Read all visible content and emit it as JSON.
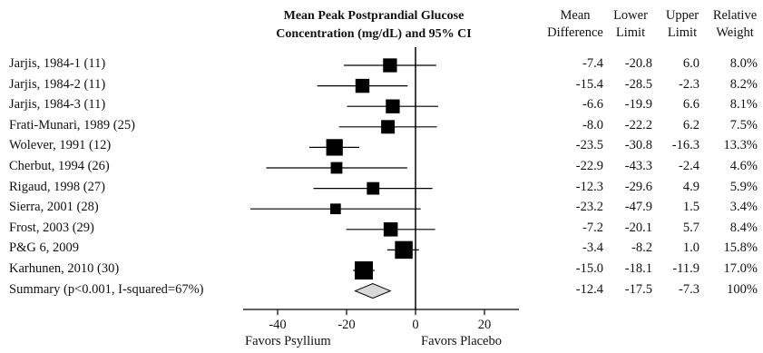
{
  "chart_data": {
    "type": "forest",
    "title_line1": "Mean Peak Postprandial Glucose",
    "title_line2": "Concentration (mg/dL) and 95% CI",
    "column_headers": [
      {
        "line1": "Mean",
        "line2": "Difference"
      },
      {
        "line1": "Lower",
        "line2": "Limit"
      },
      {
        "line1": "Upper",
        "line2": "Limit"
      },
      {
        "line1": "Relative",
        "line2": "Weight"
      }
    ],
    "rows": [
      {
        "label": "Jarjis, 1984-1 (11)",
        "mean": "-7.4",
        "lower": "-20.8",
        "upper": "6.0",
        "weight": "8.0%",
        "m": -7.4,
        "lo": -20.8,
        "hi": 6.0,
        "w": 8.0
      },
      {
        "label": "Jarjis, 1984-2 (11)",
        "mean": "-15.4",
        "lower": "-28.5",
        "upper": "-2.3",
        "weight": "8.2%",
        "m": -15.4,
        "lo": -28.5,
        "hi": -2.3,
        "w": 8.2
      },
      {
        "label": "Jarjis, 1984-3 (11)",
        "mean": "-6.6",
        "lower": "-19.9",
        "upper": "6.6",
        "weight": "8.1%",
        "m": -6.6,
        "lo": -19.9,
        "hi": 6.6,
        "w": 8.1
      },
      {
        "label": "Frati-Munari, 1989 (25)",
        "mean": "-8.0",
        "lower": "-22.2",
        "upper": "6.2",
        "weight": "7.5%",
        "m": -8.0,
        "lo": -22.2,
        "hi": 6.2,
        "w": 7.5
      },
      {
        "label": "Wolever, 1991 (12)",
        "mean": "-23.5",
        "lower": "-30.8",
        "upper": "-16.3",
        "weight": "13.3%",
        "m": -23.5,
        "lo": -30.8,
        "hi": -16.3,
        "w": 13.3
      },
      {
        "label": "Cherbut, 1994 (26)",
        "mean": "-22.9",
        "lower": "-43.3",
        "upper": "-2.4",
        "weight": "4.6%",
        "m": -22.9,
        "lo": -43.3,
        "hi": -2.4,
        "w": 4.6
      },
      {
        "label": "Rigaud, 1998 (27)",
        "mean": "-12.3",
        "lower": "-29.6",
        "upper": "4.9",
        "weight": "5.9%",
        "m": -12.3,
        "lo": -29.6,
        "hi": 4.9,
        "w": 5.9
      },
      {
        "label": "Sierra, 2001 (28)",
        "mean": "-23.2",
        "lower": "-47.9",
        "upper": "1.5",
        "weight": "3.4%",
        "m": -23.2,
        "lo": -47.9,
        "hi": 1.5,
        "w": 3.4
      },
      {
        "label": "Frost, 2003 (29)",
        "mean": "-7.2",
        "lower": "-20.1",
        "upper": "5.7",
        "weight": "8.4%",
        "m": -7.2,
        "lo": -20.1,
        "hi": 5.7,
        "w": 8.4
      },
      {
        "label": "P&G 6, 2009",
        "mean": "-3.4",
        "lower": "-8.2",
        "upper": "1.0",
        "weight": "15.8%",
        "m": -3.4,
        "lo": -8.2,
        "hi": 1.0,
        "w": 15.8
      },
      {
        "label": "Karhunen, 2010 (30)",
        "mean": "-15.0",
        "lower": "-18.1",
        "upper": "-11.9",
        "weight": "17.0%",
        "m": -15.0,
        "lo": -18.1,
        "hi": -11.9,
        "w": 17.0
      }
    ],
    "summary": {
      "label": "Summary (p<0.001, I-squared=67%)",
      "mean": "-12.4",
      "lower": "-17.5",
      "upper": "-7.3",
      "weight": "100%",
      "m": -12.4,
      "lo": -17.5,
      "hi": -7.3
    },
    "xlim": [
      -50,
      30
    ],
    "x_ticks": [
      "-40",
      "-20",
      "0",
      "20"
    ],
    "x_tick_values": [
      -40,
      -20,
      0,
      20
    ],
    "favor_left": "Favors Psyllium",
    "favor_right": "Favors Placebo",
    "colors": {
      "marker": "#000000",
      "summary_fill": "#d9d9d9",
      "line": "#000000"
    }
  }
}
